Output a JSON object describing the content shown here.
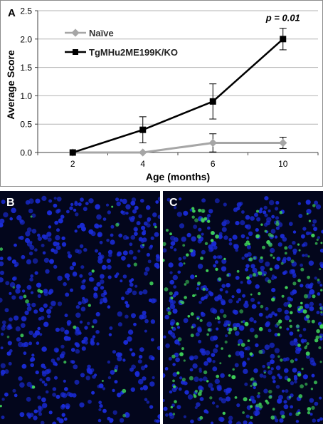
{
  "figure": {
    "panel_a_label": "A",
    "panel_b_label": "B",
    "panel_c_label": "C",
    "annotation": "p = 0.01"
  },
  "colors": {
    "naive": "#a6a6a6",
    "tg": "#000000",
    "grid": "#b3b3b3",
    "micro_bg": "#03061c",
    "nuclei": "#1a2bd6",
    "positive": "#3fd25a"
  },
  "chart_data": {
    "type": "line",
    "categories": [
      "2",
      "4",
      "6",
      "10"
    ],
    "xlabel": "Age (months)",
    "ylabel": "Average Score",
    "ylim": [
      0,
      2.5
    ],
    "yticks": [
      "0.0",
      "0.5",
      "1.0",
      "1.5",
      "2.0",
      "2.5"
    ],
    "grid": true,
    "legend_position": "top-left",
    "annotation": {
      "text": "p = 0.01",
      "category": "10"
    },
    "series": [
      {
        "name": "Naïve",
        "marker": "diamond",
        "color": "#a6a6a6",
        "values": [
          0.0,
          0.0,
          0.17,
          0.17
        ],
        "errors": [
          0.0,
          0.0,
          0.16,
          0.1
        ]
      },
      {
        "name": "TgMHu2ME199K/KO",
        "marker": "square",
        "color": "#000000",
        "values": [
          0.0,
          0.4,
          0.9,
          2.0
        ],
        "errors": [
          0.0,
          0.23,
          0.31,
          0.19
        ]
      }
    ]
  },
  "micrographs": {
    "b": {
      "positive_fraction": 0.05
    },
    "c": {
      "positive_fraction": 0.45
    }
  }
}
